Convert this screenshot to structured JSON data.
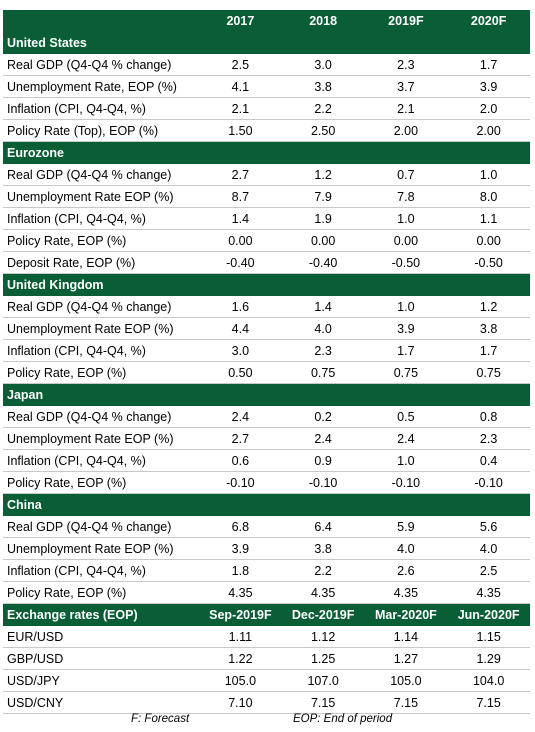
{
  "header": {
    "columns": [
      "2017",
      "2018",
      "2019F",
      "2020F"
    ]
  },
  "sections": [
    {
      "title": "United States",
      "rows": [
        {
          "label": "Real GDP (Q4-Q4 % change)",
          "values": [
            "2.5",
            "3.0",
            "2.3",
            "1.7"
          ]
        },
        {
          "label": "Unemployment Rate, EOP (%)",
          "values": [
            "4.1",
            "3.8",
            "3.7",
            "3.9"
          ]
        },
        {
          "label": "Inflation (CPI, Q4-Q4, %)",
          "values": [
            "2.1",
            "2.2",
            "2.1",
            "2.0"
          ]
        },
        {
          "label": "Policy Rate (Top), EOP (%)",
          "values": [
            "1.50",
            "2.50",
            "2.00",
            "2.00"
          ]
        }
      ]
    },
    {
      "title": "Eurozone",
      "rows": [
        {
          "label": "Real GDP (Q4-Q4 % change)",
          "values": [
            "2.7",
            "1.2",
            "0.7",
            "1.0"
          ]
        },
        {
          "label": "Unemployment Rate EOP (%)",
          "values": [
            "8.7",
            "7.9",
            "7.8",
            "8.0"
          ]
        },
        {
          "label": "Inflation (CPI, Q4-Q4, %)",
          "values": [
            "1.4",
            "1.9",
            "1.0",
            "1.1"
          ]
        },
        {
          "label": "Policy Rate, EOP (%)",
          "values": [
            "0.00",
            "0.00",
            "0.00",
            "0.00"
          ]
        },
        {
          "label": "Deposit Rate, EOP (%)",
          "values": [
            "-0.40",
            "-0.40",
            "-0.50",
            "-0.50"
          ]
        }
      ]
    },
    {
      "title": "United Kingdom",
      "rows": [
        {
          "label": "Real GDP (Q4-Q4 % change)",
          "values": [
            "1.6",
            "1.4",
            "1.0",
            "1.2"
          ]
        },
        {
          "label": "Unemployment Rate EOP (%)",
          "values": [
            "4.4",
            "4.0",
            "3.9",
            "3.8"
          ]
        },
        {
          "label": "Inflation (CPI, Q4-Q4, %)",
          "values": [
            "3.0",
            "2.3",
            "1.7",
            "1.7"
          ]
        },
        {
          "label": "Policy Rate, EOP (%)",
          "values": [
            "0.50",
            "0.75",
            "0.75",
            "0.75"
          ]
        }
      ]
    },
    {
      "title": "Japan",
      "rows": [
        {
          "label": "Real GDP (Q4-Q4 % change)",
          "values": [
            "2.4",
            "0.2",
            "0.5",
            "0.8"
          ]
        },
        {
          "label": "Unemployment Rate EOP (%)",
          "values": [
            "2.7",
            "2.4",
            "2.4",
            "2.3"
          ]
        },
        {
          "label": "Inflation (CPI, Q4-Q4, %)",
          "values": [
            "0.6",
            "0.9",
            "1.0",
            "0.4"
          ]
        },
        {
          "label": "Policy Rate, EOP (%)",
          "values": [
            "-0.10",
            "-0.10",
            "-0.10",
            "-0.10"
          ]
        }
      ]
    },
    {
      "title": "China",
      "rows": [
        {
          "label": "Real GDP (Q4-Q4 % change)",
          "values": [
            "6.8",
            "6.4",
            "5.9",
            "5.6"
          ]
        },
        {
          "label": "Unemployment Rate EOP (%)",
          "values": [
            "3.9",
            "3.8",
            "4.0",
            "4.0"
          ]
        },
        {
          "label": "Inflation (CPI, Q4-Q4, %)",
          "values": [
            "1.8",
            "2.2",
            "2.6",
            "2.5"
          ]
        },
        {
          "label": "Policy Rate, EOP (%)",
          "values": [
            "4.35",
            "4.35",
            "4.35",
            "4.35"
          ]
        }
      ]
    }
  ],
  "exchange": {
    "title": "Exchange rates (EOP)",
    "columns": [
      "Sep-2019F",
      "Dec-2019F",
      "Mar-2020F",
      "Jun-2020F"
    ],
    "rows": [
      {
        "label": "EUR/USD",
        "values": [
          "1.11",
          "1.12",
          "1.14",
          "1.15"
        ]
      },
      {
        "label": "GBP/USD",
        "values": [
          "1.22",
          "1.25",
          "1.27",
          "1.29"
        ]
      },
      {
        "label": "USD/JPY",
        "values": [
          "105.0",
          "107.0",
          "105.0",
          "104.0"
        ]
      },
      {
        "label": "USD/CNY",
        "values": [
          "7.10",
          "7.15",
          "7.15",
          "7.15"
        ]
      }
    ]
  },
  "footer": {
    "forecast_note": "F: Forecast",
    "eop_note": "EOP: End of period"
  },
  "colors": {
    "header_bg": "#0a5e35",
    "header_text": "#ffffff",
    "row_border": "#c8c8c8"
  }
}
